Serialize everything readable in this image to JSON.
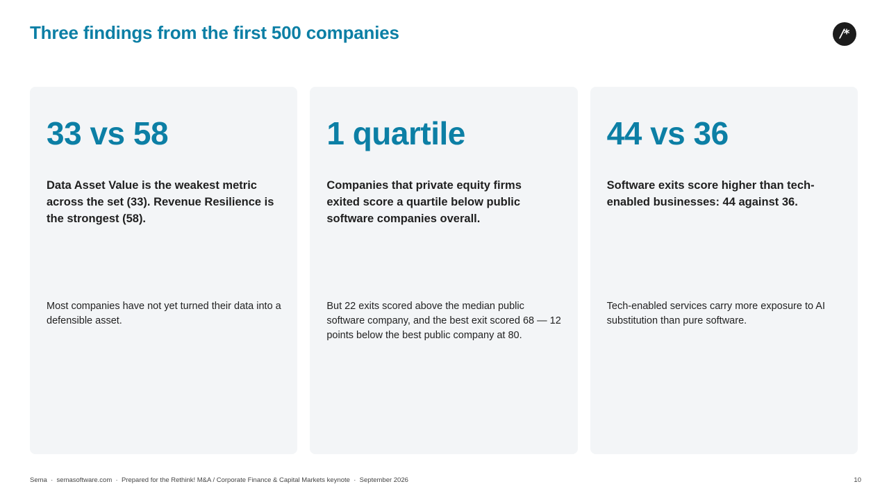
{
  "title": "Three findings from the first 500 companies",
  "logo": {
    "text": "/*"
  },
  "cards": [
    {
      "stat": "33 vs 58",
      "headline": "Data Asset Value is the weakest metric across the set (33). Revenue Resilience is the strongest (58).",
      "detail": "Most companies have not yet turned their data into a defensible asset."
    },
    {
      "stat": "1 quartile",
      "headline": "Companies that private equity firms exited score a quartile below public software companies overall.",
      "detail": "But 22 exits scored above the median public software company, and the best exit scored 68 — 12 points below the best public company at 80."
    },
    {
      "stat": "44 vs 36",
      "headline": "Software exits score higher than tech-enabled businesses: 44 against 36.",
      "detail": "Tech-enabled services carry more exposure to AI substitution than pure software."
    }
  ],
  "footer": {
    "left": "Sema  ·  semasoftware.com  ·  Prepared for the Rethink! M&A / Corporate Finance & Capital Markets keynote  ·  September 2026",
    "page_number": "10"
  }
}
